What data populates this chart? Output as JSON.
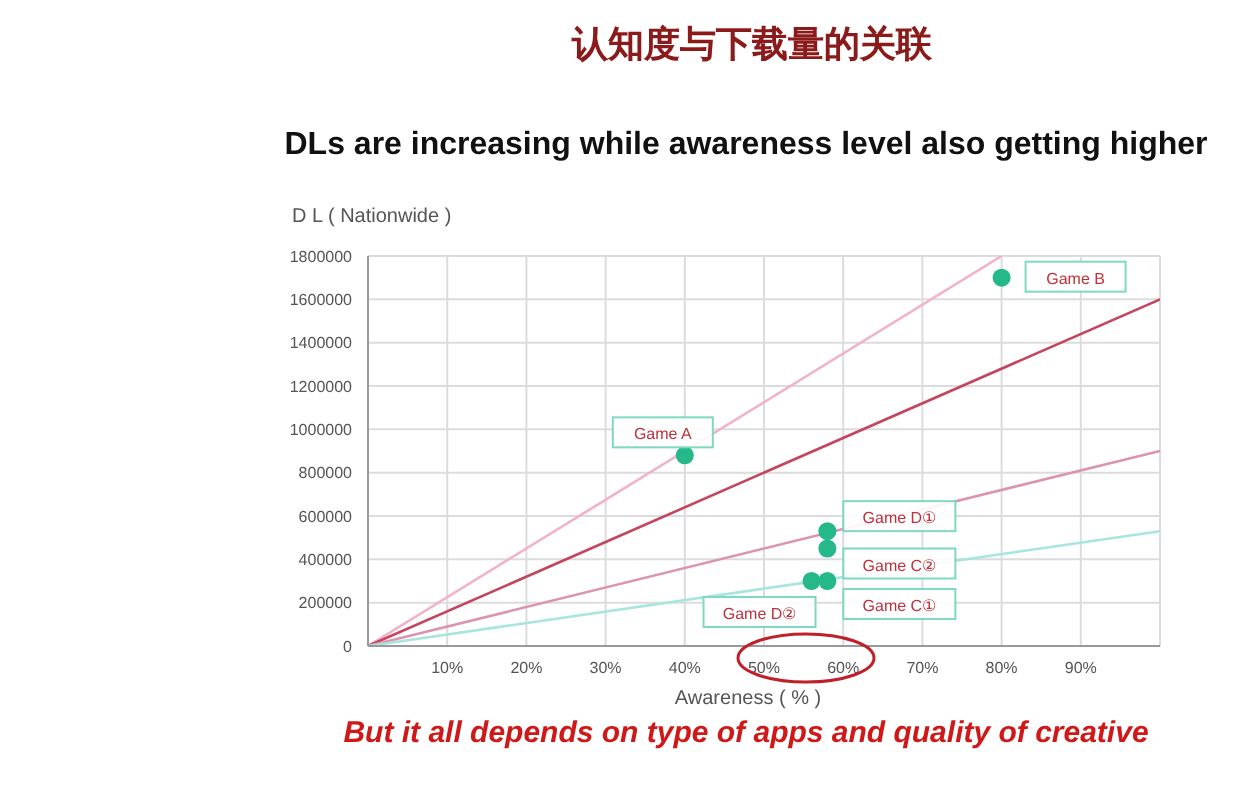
{
  "chart_data": {
    "type": "scatter",
    "title": "认知度与下载量的关联",
    "subtitle": "DLs are increasing while awareness level also getting higher",
    "xlabel": "Awareness ( % )",
    "ylabel": "D L ( Nationwide )",
    "series": [
      {
        "type": "line",
        "marker": "none",
        "color": "#f2b3c8",
        "x": [
          0,
          80
        ],
        "values": [
          0,
          1800000
        ]
      },
      {
        "type": "line",
        "marker": "none",
        "color": "#c4455e",
        "x": [
          0,
          100
        ],
        "values": [
          0,
          1600000
        ]
      },
      {
        "type": "line",
        "marker": "none",
        "color": "#dc93b0",
        "x": [
          0,
          100
        ],
        "values": [
          0,
          900000
        ]
      },
      {
        "type": "line",
        "marker": "none",
        "color": "#a6e6de",
        "x": [
          0,
          100
        ],
        "values": [
          0,
          530000
        ]
      },
      {
        "color": "#25b98a",
        "x": [
          40,
          80,
          58,
          58,
          56,
          58
        ],
        "values": [
          880000,
          1700000,
          530000,
          450000,
          300000,
          300000
        ]
      }
    ],
    "xlim": [
      0,
      100
    ],
    "xticks": [
      {
        "value": 10,
        "label": "10%"
      },
      {
        "value": 20,
        "label": "20%"
      },
      {
        "value": 30,
        "label": "30%"
      },
      {
        "value": 40,
        "label": "40%"
      },
      {
        "value": 50,
        "label": "50%"
      },
      {
        "value": 60,
        "label": "60%"
      },
      {
        "value": 70,
        "label": "70%"
      },
      {
        "value": 80,
        "label": "80%"
      },
      {
        "value": 90,
        "label": "90%"
      }
    ],
    "ylim": [
      0,
      1800000
    ],
    "yticks": [
      0,
      200000,
      400000,
      600000,
      800000,
      1000000,
      1200000,
      1400000,
      1600000,
      1800000
    ],
    "grid": true,
    "marker": "circle",
    "line_style": "solid",
    "annotations": [
      {
        "text": "Game A",
        "x": 40,
        "y": 880000
      },
      {
        "text": "Game B",
        "x": 80,
        "y": 1700000
      },
      {
        "text": "Game D①",
        "x": 58,
        "y": 530000
      },
      {
        "text": "Game C②",
        "x": 58,
        "y": 450000
      },
      {
        "text": "Game D②",
        "x": 56,
        "y": 300000
      },
      {
        "text": "Game C①",
        "x": 58,
        "y": 300000
      },
      "But it all depends on type of apps and quality of creative"
    ]
  }
}
